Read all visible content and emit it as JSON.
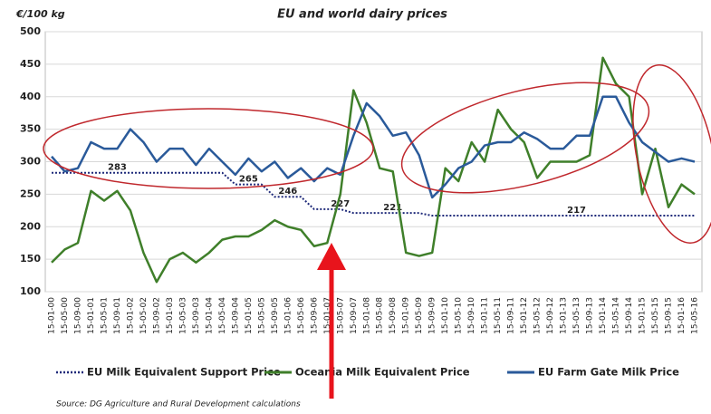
{
  "chart_data": {
    "type": "line",
    "title": "EU and world dairy prices",
    "y_label": "€/100 kg",
    "categories": [
      "15-01-00",
      "15-05-00",
      "15-09-00",
      "15-01-01",
      "15-05-01",
      "15-09-01",
      "15-01-02",
      "15-05-02",
      "15-09-02",
      "15-01-03",
      "15-05-03",
      "15-09-03",
      "15-01-04",
      "15-05-04",
      "15-09-04",
      "15-01-05",
      "15-05-05",
      "15-09-05",
      "15-01-06",
      "15-05-06",
      "15-09-06",
      "15-01-07",
      "15-05-07",
      "15-09-07",
      "15-01-08",
      "15-05-08",
      "15-09-08",
      "15-01-09",
      "15-05-09",
      "15-09-09",
      "15-01-10",
      "15-05-10",
      "15-09-10",
      "15-01-11",
      "15-05-11",
      "15-09-11",
      "15-01-12",
      "15-05-12",
      "15-09-12",
      "15-01-13",
      "15-05-13",
      "15-09-13",
      "15-01-14",
      "15-05-14",
      "15-09-14",
      "15-01-15",
      "15-05-15",
      "15-09-15",
      "15-01-16",
      "15-05-16"
    ],
    "series": [
      {
        "name": "EU Milk Equivalent Support Price",
        "color": "#1f2a7a",
        "style": "dotted",
        "values": [
          283,
          283,
          283,
          283,
          283,
          283,
          283,
          283,
          283,
          283,
          283,
          283,
          283,
          283,
          265,
          265,
          265,
          246,
          246,
          246,
          227,
          227,
          227,
          221,
          221,
          221,
          221,
          221,
          221,
          217,
          217,
          217,
          217,
          217,
          217,
          217,
          217,
          217,
          217,
          217,
          217,
          217,
          217,
          217,
          217,
          217,
          217,
          217,
          217,
          217
        ],
        "value_labels": [
          null,
          null,
          null,
          null,
          null,
          "283",
          null,
          null,
          null,
          null,
          null,
          null,
          null,
          null,
          null,
          "265",
          null,
          null,
          "246",
          null,
          null,
          null,
          "227",
          null,
          null,
          null,
          "221",
          null,
          null,
          null,
          null,
          null,
          null,
          null,
          null,
          null,
          null,
          null,
          null,
          null,
          "217",
          null,
          null,
          null,
          null,
          null,
          null,
          null,
          null,
          null
        ]
      },
      {
        "name": "Oceania Milk Equivalent Price",
        "color": "#3f7f2a",
        "style": "solid",
        "values": [
          145,
          165,
          175,
          255,
          240,
          255,
          225,
          160,
          115,
          150,
          160,
          145,
          160,
          180,
          185,
          185,
          195,
          210,
          200,
          195,
          170,
          175,
          250,
          410,
          360,
          290,
          285,
          160,
          155,
          160,
          290,
          270,
          330,
          300,
          380,
          350,
          330,
          275,
          300,
          300,
          300,
          310,
          460,
          420,
          400,
          250,
          320,
          230,
          265,
          250
        ]
      },
      {
        "name": "EU Farm Gate Milk Price",
        "color": "#2a5a9a",
        "style": "solid",
        "values": [
          308,
          285,
          290,
          330,
          320,
          320,
          350,
          330,
          300,
          320,
          320,
          295,
          320,
          300,
          280,
          305,
          285,
          300,
          275,
          290,
          270,
          290,
          280,
          340,
          390,
          370,
          340,
          345,
          310,
          245,
          265,
          290,
          300,
          325,
          330,
          330,
          345,
          335,
          320,
          320,
          340,
          340,
          400,
          400,
          360,
          330,
          315,
          300,
          305,
          300
        ]
      }
    ],
    "ylim": [
      100,
      500
    ],
    "yticks": [
      100,
      150,
      200,
      250,
      300,
      350,
      400,
      450,
      500
    ],
    "grid": true,
    "source": "Source: DG Agriculture and Rural Development calculations"
  }
}
